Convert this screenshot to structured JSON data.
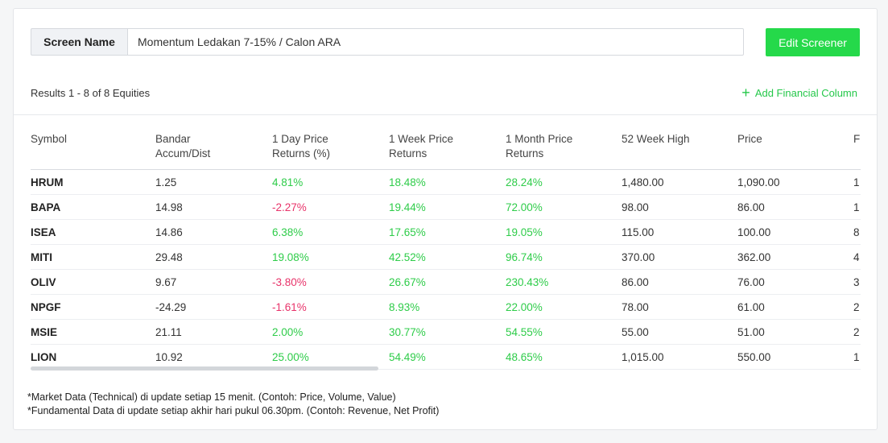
{
  "screen": {
    "label": "Screen Name",
    "value": "Momentum Ledakan 7-15% / Calon ARA",
    "edit_button": "Edit Screener"
  },
  "results_text": "Results 1 - 8 of 8 Equities",
  "add_column": {
    "icon": "plus-icon",
    "label": "Add Financial Column"
  },
  "columns": [
    [
      "Symbol"
    ],
    [
      "Bandar",
      "Accum/Dist"
    ],
    [
      "1 Day Price",
      "Returns (%)"
    ],
    [
      "1 Week Price",
      "Returns"
    ],
    [
      "1 Month Price",
      "Returns"
    ],
    [
      "52 Week High"
    ],
    [
      "Price"
    ],
    [
      "F"
    ]
  ],
  "rows": [
    {
      "symbol": "HRUM",
      "bandar": "1.25",
      "day": "4.81%",
      "week": "18.48%",
      "month": "28.24%",
      "high52": "1,480.00",
      "price": "1,090.00",
      "f": "1"
    },
    {
      "symbol": "BAPA",
      "bandar": "14.98",
      "day": "-2.27%",
      "week": "19.44%",
      "month": "72.00%",
      "high52": "98.00",
      "price": "86.00",
      "f": "1"
    },
    {
      "symbol": "ISEA",
      "bandar": "14.86",
      "day": "6.38%",
      "week": "17.65%",
      "month": "19.05%",
      "high52": "115.00",
      "price": "100.00",
      "f": "8"
    },
    {
      "symbol": "MITI",
      "bandar": "29.48",
      "day": "19.08%",
      "week": "42.52%",
      "month": "96.74%",
      "high52": "370.00",
      "price": "362.00",
      "f": "4"
    },
    {
      "symbol": "OLIV",
      "bandar": "9.67",
      "day": "-3.80%",
      "week": "26.67%",
      "month": "230.43%",
      "high52": "86.00",
      "price": "76.00",
      "f": "3"
    },
    {
      "symbol": "NPGF",
      "bandar": "-24.29",
      "day": "-1.61%",
      "week": "8.93%",
      "month": "22.00%",
      "high52": "78.00",
      "price": "61.00",
      "f": "2"
    },
    {
      "symbol": "MSIE",
      "bandar": "21.11",
      "day": "2.00%",
      "week": "30.77%",
      "month": "54.55%",
      "high52": "55.00",
      "price": "51.00",
      "f": "2"
    },
    {
      "symbol": "LION",
      "bandar": "10.92",
      "day": "25.00%",
      "week": "54.49%",
      "month": "48.65%",
      "high52": "1,015.00",
      "price": "550.00",
      "f": "1"
    }
  ],
  "notes": [
    "*Market Data (Technical) di update setiap 15 menit. (Contoh: Price, Volume, Value)",
    "*Fundamental Data di update setiap akhir hari pukul 06.30pm. (Contoh: Revenue, Net Profit)"
  ],
  "colors": {
    "accent": "#25d94a",
    "positive": "#2ecc49",
    "negative": "#e8336a"
  }
}
